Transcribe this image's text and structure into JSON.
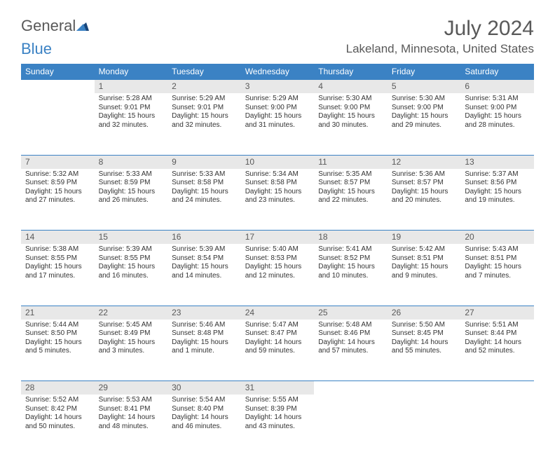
{
  "logo": {
    "part1": "General",
    "part2": "Blue"
  },
  "title": "July 2024",
  "location": "Lakeland, Minnesota, United States",
  "colors": {
    "header_bg": "#3b82c4",
    "header_text": "#ffffff",
    "daynum_bg": "#e8e8e8",
    "border": "#3b82c4",
    "text": "#333333",
    "muted": "#595959",
    "page_bg": "#ffffff"
  },
  "weekdays": [
    "Sunday",
    "Monday",
    "Tuesday",
    "Wednesday",
    "Thursday",
    "Friday",
    "Saturday"
  ],
  "weeks": [
    {
      "nums": [
        "",
        "1",
        "2",
        "3",
        "4",
        "5",
        "6"
      ],
      "cells": [
        null,
        {
          "sunrise": "Sunrise: 5:28 AM",
          "sunset": "Sunset: 9:01 PM",
          "daylight": "Daylight: 15 hours and 32 minutes."
        },
        {
          "sunrise": "Sunrise: 5:29 AM",
          "sunset": "Sunset: 9:01 PM",
          "daylight": "Daylight: 15 hours and 32 minutes."
        },
        {
          "sunrise": "Sunrise: 5:29 AM",
          "sunset": "Sunset: 9:00 PM",
          "daylight": "Daylight: 15 hours and 31 minutes."
        },
        {
          "sunrise": "Sunrise: 5:30 AM",
          "sunset": "Sunset: 9:00 PM",
          "daylight": "Daylight: 15 hours and 30 minutes."
        },
        {
          "sunrise": "Sunrise: 5:30 AM",
          "sunset": "Sunset: 9:00 PM",
          "daylight": "Daylight: 15 hours and 29 minutes."
        },
        {
          "sunrise": "Sunrise: 5:31 AM",
          "sunset": "Sunset: 9:00 PM",
          "daylight": "Daylight: 15 hours and 28 minutes."
        }
      ]
    },
    {
      "nums": [
        "7",
        "8",
        "9",
        "10",
        "11",
        "12",
        "13"
      ],
      "cells": [
        {
          "sunrise": "Sunrise: 5:32 AM",
          "sunset": "Sunset: 8:59 PM",
          "daylight": "Daylight: 15 hours and 27 minutes."
        },
        {
          "sunrise": "Sunrise: 5:33 AM",
          "sunset": "Sunset: 8:59 PM",
          "daylight": "Daylight: 15 hours and 26 minutes."
        },
        {
          "sunrise": "Sunrise: 5:33 AM",
          "sunset": "Sunset: 8:58 PM",
          "daylight": "Daylight: 15 hours and 24 minutes."
        },
        {
          "sunrise": "Sunrise: 5:34 AM",
          "sunset": "Sunset: 8:58 PM",
          "daylight": "Daylight: 15 hours and 23 minutes."
        },
        {
          "sunrise": "Sunrise: 5:35 AM",
          "sunset": "Sunset: 8:57 PM",
          "daylight": "Daylight: 15 hours and 22 minutes."
        },
        {
          "sunrise": "Sunrise: 5:36 AM",
          "sunset": "Sunset: 8:57 PM",
          "daylight": "Daylight: 15 hours and 20 minutes."
        },
        {
          "sunrise": "Sunrise: 5:37 AM",
          "sunset": "Sunset: 8:56 PM",
          "daylight": "Daylight: 15 hours and 19 minutes."
        }
      ]
    },
    {
      "nums": [
        "14",
        "15",
        "16",
        "17",
        "18",
        "19",
        "20"
      ],
      "cells": [
        {
          "sunrise": "Sunrise: 5:38 AM",
          "sunset": "Sunset: 8:55 PM",
          "daylight": "Daylight: 15 hours and 17 minutes."
        },
        {
          "sunrise": "Sunrise: 5:39 AM",
          "sunset": "Sunset: 8:55 PM",
          "daylight": "Daylight: 15 hours and 16 minutes."
        },
        {
          "sunrise": "Sunrise: 5:39 AM",
          "sunset": "Sunset: 8:54 PM",
          "daylight": "Daylight: 15 hours and 14 minutes."
        },
        {
          "sunrise": "Sunrise: 5:40 AM",
          "sunset": "Sunset: 8:53 PM",
          "daylight": "Daylight: 15 hours and 12 minutes."
        },
        {
          "sunrise": "Sunrise: 5:41 AM",
          "sunset": "Sunset: 8:52 PM",
          "daylight": "Daylight: 15 hours and 10 minutes."
        },
        {
          "sunrise": "Sunrise: 5:42 AM",
          "sunset": "Sunset: 8:51 PM",
          "daylight": "Daylight: 15 hours and 9 minutes."
        },
        {
          "sunrise": "Sunrise: 5:43 AM",
          "sunset": "Sunset: 8:51 PM",
          "daylight": "Daylight: 15 hours and 7 minutes."
        }
      ]
    },
    {
      "nums": [
        "21",
        "22",
        "23",
        "24",
        "25",
        "26",
        "27"
      ],
      "cells": [
        {
          "sunrise": "Sunrise: 5:44 AM",
          "sunset": "Sunset: 8:50 PM",
          "daylight": "Daylight: 15 hours and 5 minutes."
        },
        {
          "sunrise": "Sunrise: 5:45 AM",
          "sunset": "Sunset: 8:49 PM",
          "daylight": "Daylight: 15 hours and 3 minutes."
        },
        {
          "sunrise": "Sunrise: 5:46 AM",
          "sunset": "Sunset: 8:48 PM",
          "daylight": "Daylight: 15 hours and 1 minute."
        },
        {
          "sunrise": "Sunrise: 5:47 AM",
          "sunset": "Sunset: 8:47 PM",
          "daylight": "Daylight: 14 hours and 59 minutes."
        },
        {
          "sunrise": "Sunrise: 5:48 AM",
          "sunset": "Sunset: 8:46 PM",
          "daylight": "Daylight: 14 hours and 57 minutes."
        },
        {
          "sunrise": "Sunrise: 5:50 AM",
          "sunset": "Sunset: 8:45 PM",
          "daylight": "Daylight: 14 hours and 55 minutes."
        },
        {
          "sunrise": "Sunrise: 5:51 AM",
          "sunset": "Sunset: 8:44 PM",
          "daylight": "Daylight: 14 hours and 52 minutes."
        }
      ]
    },
    {
      "nums": [
        "28",
        "29",
        "30",
        "31",
        "",
        "",
        ""
      ],
      "cells": [
        {
          "sunrise": "Sunrise: 5:52 AM",
          "sunset": "Sunset: 8:42 PM",
          "daylight": "Daylight: 14 hours and 50 minutes."
        },
        {
          "sunrise": "Sunrise: 5:53 AM",
          "sunset": "Sunset: 8:41 PM",
          "daylight": "Daylight: 14 hours and 48 minutes."
        },
        {
          "sunrise": "Sunrise: 5:54 AM",
          "sunset": "Sunset: 8:40 PM",
          "daylight": "Daylight: 14 hours and 46 minutes."
        },
        {
          "sunrise": "Sunrise: 5:55 AM",
          "sunset": "Sunset: 8:39 PM",
          "daylight": "Daylight: 14 hours and 43 minutes."
        },
        null,
        null,
        null
      ]
    }
  ]
}
